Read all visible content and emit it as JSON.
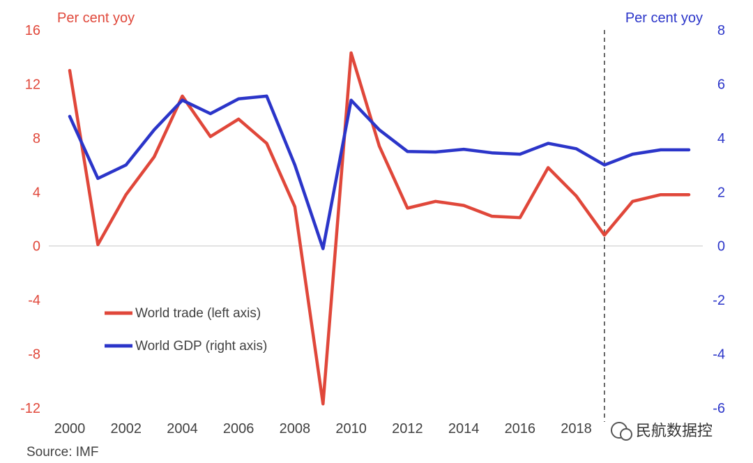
{
  "chart_data": {
    "type": "line",
    "left_axis": {
      "unit_label": "Per cent yoy",
      "ticks": [
        16,
        12,
        8,
        4,
        0,
        -4,
        -8,
        -12
      ],
      "ylim": [
        -12,
        16
      ],
      "color": "#e0473a"
    },
    "right_axis": {
      "unit_label": "Per cent yoy",
      "ticks": [
        8,
        6,
        4,
        2,
        0,
        -2,
        -4,
        -6
      ],
      "ylim": [
        -6,
        8
      ],
      "color": "#2b35c9"
    },
    "x_ticks": [
      "2000",
      "2002",
      "2004",
      "2006",
      "2008",
      "2010",
      "2012",
      "2014",
      "2016",
      "2018"
    ],
    "x_range": [
      2000,
      2022
    ],
    "forecast_year": 2019,
    "series": [
      {
        "name": "World trade (left axis)",
        "axis": "left",
        "color": "#e0473a",
        "x": [
          2000,
          2001,
          2002,
          2003,
          2004,
          2005,
          2006,
          2007,
          2008,
          2009,
          2010,
          2011,
          2012,
          2013,
          2014,
          2015,
          2016,
          2017,
          2018,
          2019,
          2020,
          2021,
          2022
        ],
        "y": [
          13.0,
          0.1,
          3.8,
          6.6,
          11.1,
          8.1,
          9.4,
          7.6,
          2.9,
          -11.7,
          14.3,
          7.4,
          2.8,
          3.3,
          3.0,
          2.2,
          2.1,
          5.8,
          3.7,
          0.8,
          3.3,
          3.8,
          3.8
        ]
      },
      {
        "name": "World GDP (right axis)",
        "axis": "right",
        "color": "#2b35c9",
        "x": [
          2000,
          2001,
          2002,
          2003,
          2004,
          2005,
          2006,
          2007,
          2008,
          2009,
          2010,
          2011,
          2012,
          2013,
          2014,
          2015,
          2016,
          2017,
          2018,
          2019,
          2020,
          2021,
          2022
        ],
        "y": [
          4.8,
          2.5,
          3.0,
          4.3,
          5.4,
          4.9,
          5.45,
          5.55,
          3.0,
          -0.1,
          5.4,
          4.3,
          3.5,
          3.48,
          3.58,
          3.45,
          3.4,
          3.8,
          3.6,
          3.0,
          3.4,
          3.56,
          3.56
        ]
      }
    ],
    "source": "Source: IMF",
    "watermark": "民航数据控"
  }
}
